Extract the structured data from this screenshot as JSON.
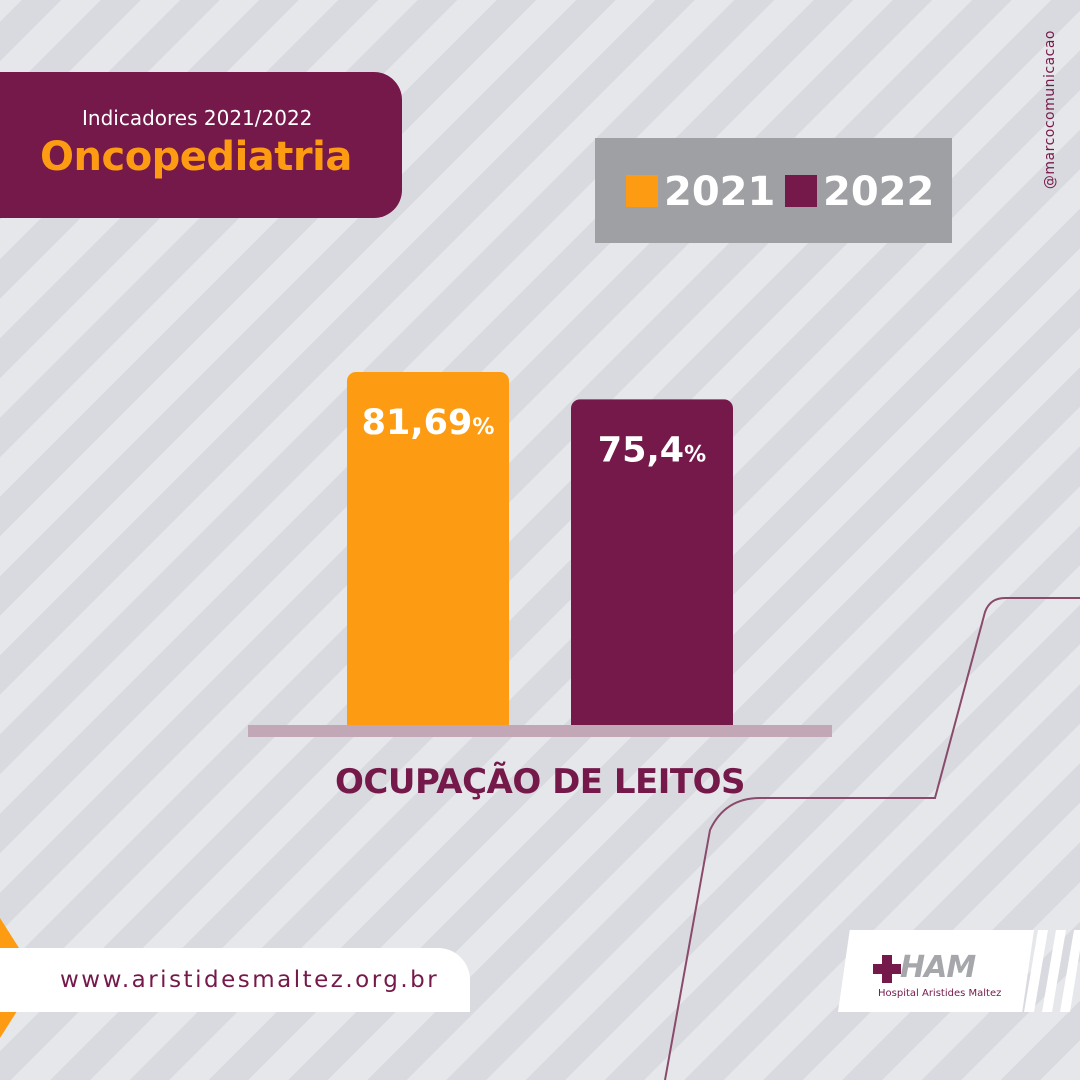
{
  "header": {
    "subtitle": "Indicadores 2021/2022",
    "title": "Oncopediatria"
  },
  "legend": {
    "items": [
      {
        "label": "2021",
        "color": "#fd9c12"
      },
      {
        "label": "2022",
        "color": "#75194a"
      }
    ]
  },
  "social_handle": "@marcocomunicacao",
  "chart_data": {
    "type": "bar",
    "categories": [
      "2021",
      "2022"
    ],
    "values": [
      81.69,
      75.4
    ],
    "data_labels": [
      "81,69",
      "75,4"
    ],
    "unit": "%",
    "colors": [
      "#fd9c12",
      "#75194a"
    ],
    "xlabel": "OCUPAÇÃO DE LEITOS",
    "ylim": [
      0,
      81.69
    ],
    "grid": false,
    "legend": "top-right"
  },
  "footer": {
    "url": "www.aristidesmaltez.org.br",
    "logo_text": "HAM",
    "logo_subtitle": "Hospital Aristides Maltez"
  },
  "icons": {
    "url_arrow": "orange-triangle-icon",
    "logo_cross": "plus-cross-icon"
  }
}
